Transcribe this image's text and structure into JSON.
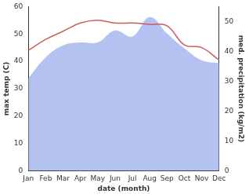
{
  "chart_data": {
    "type": "line",
    "categories": [
      "Jan",
      "Feb",
      "Mar",
      "Apr",
      "May",
      "Jun",
      "Jul",
      "Aug",
      "Sep",
      "Oct",
      "Nov",
      "Dec"
    ],
    "x_label": "date (month)",
    "y_label": "max temp (C)",
    "y2_label": "med. precipitation (kg/m2)",
    "ylim": [
      0,
      60
    ],
    "yticks": [
      0,
      10,
      20,
      30,
      40,
      50,
      60
    ],
    "y2lim": [
      0,
      55
    ],
    "y2ticks": [
      0,
      10,
      20,
      30,
      40,
      50
    ],
    "grid": false,
    "series": [
      {
        "name": "med. precipitation",
        "type": "area",
        "axis": "y2",
        "color": "#b4c2f2",
        "values": [
          31,
          38,
          42,
          43,
          43,
          47,
          45,
          51.5,
          46,
          41,
          37,
          36
        ]
      },
      {
        "name": "max temp",
        "type": "line",
        "axis": "y",
        "color": "#cd5c5c",
        "values": [
          44,
          48,
          51,
          54,
          55,
          54,
          54,
          53.5,
          53,
          46,
          45,
          40.5
        ]
      }
    ]
  }
}
